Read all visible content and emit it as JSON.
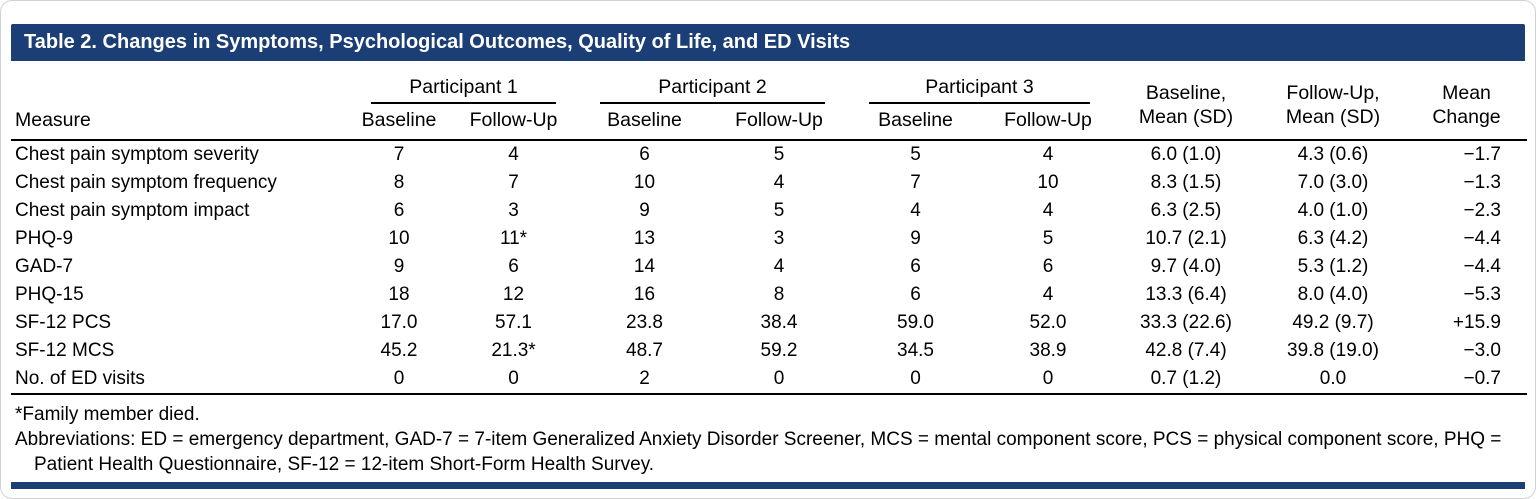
{
  "title_bar": {
    "text": "Table 2. Changes in Symptoms, Psychological Outcomes, Quality of Life, and ED Visits"
  },
  "table": {
    "measure_header": "Measure",
    "participant_groups": [
      "Participant 1",
      "Participant 2",
      "Participant 3"
    ],
    "sub_headers": [
      "Baseline",
      "Follow-Up"
    ],
    "summary_headers": [
      {
        "line1": "Baseline,",
        "line2": "Mean (SD)"
      },
      {
        "line1": "Follow-Up,",
        "line2": "Mean (SD)"
      },
      {
        "line1": "Mean",
        "line2": "Change"
      }
    ],
    "rows": [
      {
        "measure": "Chest pain symptom severity",
        "values": [
          "7",
          "4",
          "6",
          "5",
          "5",
          "4",
          "6.0 (1.0)",
          "4.3 (0.6)",
          "−1.7"
        ]
      },
      {
        "measure": "Chest pain symptom frequency",
        "values": [
          "8",
          "7",
          "10",
          "4",
          "7",
          "10",
          "8.3 (1.5)",
          "7.0 (3.0)",
          "−1.3"
        ]
      },
      {
        "measure": "Chest pain symptom impact",
        "values": [
          "6",
          "3",
          "9",
          "5",
          "4",
          "4",
          "6.3 (2.5)",
          "4.0 (1.0)",
          "−2.3"
        ]
      },
      {
        "measure": "PHQ-9",
        "values": [
          "10",
          "11*",
          "13",
          "3",
          "9",
          "5",
          "10.7 (2.1)",
          "6.3 (4.2)",
          "−4.4"
        ]
      },
      {
        "measure": "GAD-7",
        "values": [
          "9",
          "6",
          "14",
          "4",
          "6",
          "6",
          "9.7 (4.0)",
          "5.3 (1.2)",
          "−4.4"
        ]
      },
      {
        "measure": "PHQ-15",
        "values": [
          "18",
          "12",
          "16",
          "8",
          "6",
          "4",
          "13.3 (6.4)",
          "8.0 (4.0)",
          "−5.3"
        ]
      },
      {
        "measure": "SF-12 PCS",
        "values": [
          "17.0",
          "57.1",
          "23.8",
          "38.4",
          "59.0",
          "52.0",
          "33.3 (22.6)",
          "49.2 (9.7)",
          "+15.9"
        ]
      },
      {
        "measure": "SF-12 MCS",
        "values": [
          "45.2",
          "21.3*",
          "48.7",
          "59.2",
          "34.5",
          "38.9",
          "42.8 (7.4)",
          "39.8 (19.0)",
          "−3.0"
        ]
      },
      {
        "measure": "No. of ED visits",
        "values": [
          "0",
          "0",
          "2",
          "0",
          "0",
          "0",
          "0.7 (1.2)",
          "0.0",
          "−0.7"
        ]
      }
    ]
  },
  "footnotes": {
    "asterisk": "*Family member died.",
    "abbreviations": "Abbreviations: ED = emergency department, GAD-7 = 7-item Generalized Anxiety Disorder Screener, MCS = mental component score, PCS = physical component score, PHQ = Patient Health Questionnaire, SF-12 = 12-item Short-Form Health Survey."
  },
  "colors": {
    "title_bar_bg": "#1a3e75",
    "title_text": "#ffffff",
    "body_text": "#000000",
    "rule": "#000000"
  }
}
